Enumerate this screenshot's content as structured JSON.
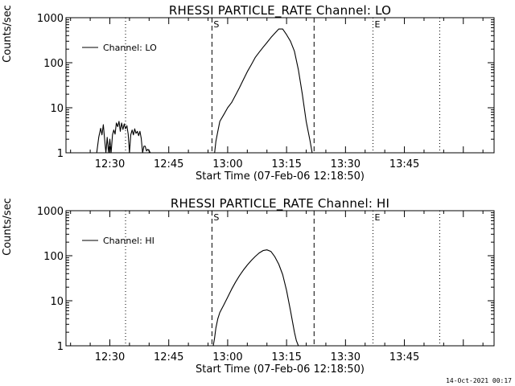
{
  "footer": {
    "datestamp": "14-Oct-2021 00:17"
  },
  "chart_data": [
    {
      "type": "line",
      "title": "RHESSI PARTICLE_RATE Channel: LO",
      "xlabel": "Start Time (07-Feb-06 12:18:50)",
      "ylabel": "Counts/sec",
      "yscale": "log",
      "ylim": [
        1,
        1000
      ],
      "xlim_minutes_after_start": [
        0,
        109
      ],
      "x_tick_labels": [
        "12:30",
        "12:45",
        "13:00",
        "13:15",
        "13:30",
        "13:45"
      ],
      "y_tick_labels": [
        "1",
        "10",
        "100",
        "1000"
      ],
      "legend": {
        "position": "top-left",
        "entries": [
          "Channel: LO"
        ]
      },
      "markers": [
        {
          "time": "12:34",
          "style": "dotted",
          "label": ""
        },
        {
          "time": "12:56",
          "style": "dashed",
          "label": "S"
        },
        {
          "time": "13:22",
          "style": "dashed",
          "label": ""
        },
        {
          "time": "13:37",
          "style": "dotted",
          "label": "E"
        },
        {
          "time": "13:54",
          "style": "dotted",
          "label": ""
        }
      ],
      "series": [
        {
          "name": "Channel: LO",
          "color": "#000000",
          "segments": [
            {
              "x": [
                "12:26:40",
                "12:27:10",
                "12:27:40",
                "12:28:00",
                "12:28:20",
                "12:28:40",
                "12:29:00",
                "12:29:20",
                "12:29:40",
                "12:30:00",
                "12:30:20",
                "12:30:40",
                "12:31:00",
                "12:31:20",
                "12:31:40",
                "12:32:00",
                "12:32:20",
                "12:32:40",
                "12:33:00",
                "12:33:20",
                "12:33:40",
                "12:34:00",
                "12:34:20",
                "12:34:40",
                "12:35:00",
                "12:35:20",
                "12:35:40",
                "12:36:00",
                "12:36:20",
                "12:36:40",
                "12:37:00",
                "12:37:20",
                "12:37:40",
                "12:38:00",
                "12:38:20",
                "12:38:40",
                "12:39:00",
                "12:39:20",
                "12:39:40",
                "12:40:00",
                "12:40:20"
              ],
              "y": [
                1,
                2.2,
                3.5,
                2.5,
                4.2,
                2,
                1,
                2.2,
                1,
                2,
                1,
                2.5,
                3.2,
                2.6,
                4.6,
                3.8,
                5,
                3,
                4.6,
                3.3,
                4.4,
                3.4,
                4,
                2.6,
                1,
                2.5,
                3.2,
                2.5,
                3.4,
                2.7,
                3,
                2.4,
                3,
                2.1,
                1,
                1.4,
                1.4,
                1.1,
                1.2,
                1.1,
                1
              ]
            },
            {
              "x": [
                "12:56:40",
                "12:57:00",
                "12:57:30",
                "12:58:00",
                "12:59:00",
                "13:00:00",
                "13:01:00",
                "13:02:00",
                "13:03:00",
                "13:04:00",
                "13:05:00",
                "13:06:00",
                "13:07:00",
                "13:08:00",
                "13:09:00",
                "13:10:00",
                "13:11:00",
                "13:12:00",
                "13:13:00",
                "13:14:00",
                "13:15:00",
                "13:16:00",
                "13:17:00",
                "13:18:00",
                "13:19:00",
                "13:20:00",
                "13:21:00",
                "13:21:30"
              ],
              "y": [
                1,
                1.8,
                3,
                5,
                7,
                10,
                13,
                19,
                28,
                42,
                63,
                90,
                130,
                170,
                220,
                280,
                360,
                450,
                560,
                560,
                420,
                300,
                180,
                70,
                20,
                5,
                1.8,
                1
              ]
            }
          ]
        }
      ]
    },
    {
      "type": "line",
      "title": "RHESSI PARTICLE_RATE Channel: HI",
      "xlabel": "Start Time (07-Feb-06 12:18:50)",
      "ylabel": "Counts/sec",
      "yscale": "log",
      "ylim": [
        1,
        1000
      ],
      "xlim_minutes_after_start": [
        0,
        109
      ],
      "x_tick_labels": [
        "12:30",
        "12:45",
        "13:00",
        "13:15",
        "13:30",
        "13:45"
      ],
      "y_tick_labels": [
        "1",
        "10",
        "100",
        "1000"
      ],
      "legend": {
        "position": "top-left",
        "entries": [
          "Channel: HI"
        ]
      },
      "markers": [
        {
          "time": "12:34",
          "style": "dotted",
          "label": ""
        },
        {
          "time": "12:56",
          "style": "dashed",
          "label": "S"
        },
        {
          "time": "13:22",
          "style": "dashed",
          "label": ""
        },
        {
          "time": "13:37",
          "style": "dotted",
          "label": "E"
        },
        {
          "time": "13:54",
          "style": "dotted",
          "label": ""
        }
      ],
      "series": [
        {
          "name": "Channel: HI",
          "color": "#000000",
          "segments": [
            {
              "x": [
                "12:56:20",
                "12:56:40",
                "12:57:00",
                "12:57:30",
                "12:58:00",
                "12:59:00",
                "13:00:00",
                "13:01:00",
                "13:02:00",
                "13:03:00",
                "13:04:00",
                "13:05:00",
                "13:06:00",
                "13:07:00",
                "13:08:00",
                "13:09:00",
                "13:10:00",
                "13:11:00",
                "13:12:00",
                "13:13:00",
                "13:14:00",
                "13:15:00",
                "13:16:00",
                "13:17:00",
                "13:17:30",
                "13:18:00"
              ],
              "y": [
                1,
                1.5,
                2.5,
                4,
                5.5,
                8,
                12,
                18,
                26,
                36,
                48,
                62,
                78,
                96,
                115,
                130,
                135,
                125,
                95,
                65,
                38,
                17,
                6,
                2,
                1.3,
                1
              ]
            }
          ]
        }
      ]
    }
  ]
}
